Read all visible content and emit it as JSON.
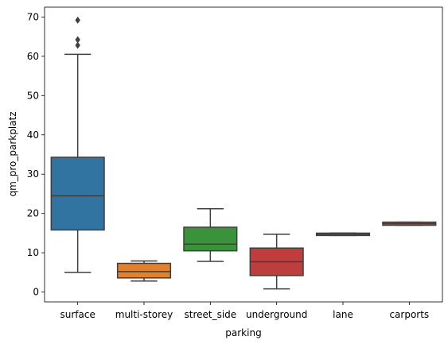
{
  "chart_data": {
    "type": "box",
    "xlabel": "parking",
    "ylabel": "qm_pro_parkplatz",
    "ylim": [
      -2.5,
      72.5
    ],
    "yticks": [
      0,
      10,
      20,
      30,
      40,
      50,
      60,
      70
    ],
    "grid": false,
    "categories": [
      "surface",
      "multi-storey",
      "street_side",
      "underground",
      "lane",
      "carports"
    ],
    "boxes": [
      {
        "category": "surface",
        "color": "#3274a1",
        "whisker_low": 5.0,
        "q1": 15.8,
        "median": 24.5,
        "q3": 34.3,
        "whisker_high": 60.5,
        "outliers": [
          62.8,
          64.2,
          69.2
        ]
      },
      {
        "category": "multi-storey",
        "color": "#e1812c",
        "whisker_low": 2.8,
        "q1": 3.6,
        "median": 5.2,
        "q3": 7.3,
        "whisker_high": 7.9,
        "outliers": []
      },
      {
        "category": "street_side",
        "color": "#3a923a",
        "whisker_low": 7.8,
        "q1": 10.5,
        "median": 12.2,
        "q3": 16.5,
        "whisker_high": 21.2,
        "outliers": []
      },
      {
        "category": "underground",
        "color": "#c03d3e",
        "whisker_low": 0.8,
        "q1": 4.2,
        "median": 7.7,
        "q3": 11.2,
        "whisker_high": 14.7,
        "outliers": []
      },
      {
        "category": "lane",
        "color": "#9372b2",
        "whisker_low": 14.4,
        "q1": 14.4,
        "median": 14.7,
        "q3": 15.0,
        "whisker_high": 15.0,
        "outliers": []
      },
      {
        "category": "carports",
        "color": "#845b53",
        "whisker_low": 17.0,
        "q1": 17.0,
        "median": 17.4,
        "q3": 17.8,
        "whisker_high": 17.8,
        "outliers": []
      }
    ]
  }
}
